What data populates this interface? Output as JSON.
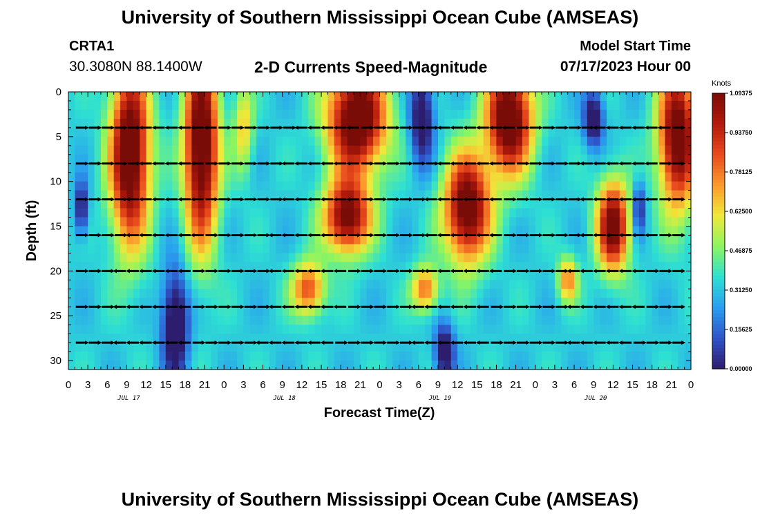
{
  "header": {
    "title": "University of Southern Mississippi Ocean Cube (AMSEAS)",
    "station": "CRTA1",
    "coords": "30.3080N  88.1400W",
    "subtitle": "2-D Currents Speed-Magnitude",
    "model_start_label": "Model Start Time",
    "model_start_value": "07/17/2023 Hour 00"
  },
  "footer": {
    "title": "University of Southern Mississippi Ocean Cube (AMSEAS)"
  },
  "chart_data": {
    "type": "heatmap",
    "title": "2-D Currents Speed-Magnitude",
    "xlabel": "Forecast Time(Z)",
    "ylabel": "Depth (ft)",
    "x_tick_labels": [
      "0",
      "3",
      "6",
      "9",
      "12",
      "15",
      "18",
      "21",
      "0",
      "3",
      "6",
      "9",
      "12",
      "15",
      "18",
      "21",
      "0",
      "3",
      "6",
      "9",
      "12",
      "15",
      "18",
      "21",
      "0",
      "3",
      "6",
      "9",
      "12",
      "15",
      "18",
      "21",
      "0"
    ],
    "date_labels": [
      {
        "label": "JUL 17",
        "hour": 9
      },
      {
        "label": "JUL 18",
        "hour": 33
      },
      {
        "label": "JUL 19",
        "hour": 57
      },
      {
        "label": "JUL 20",
        "hour": 81
      }
    ],
    "xlim": [
      0,
      96
    ],
    "ylim": [
      0,
      31
    ],
    "y_ticks": [
      0,
      5,
      10,
      15,
      20,
      25,
      30
    ],
    "arrow_depths": [
      4,
      8,
      12,
      16,
      20,
      24,
      28
    ],
    "arrow_hours_step": 2,
    "colorbar": {
      "unit": "Knots",
      "range": [
        0,
        1.09375
      ],
      "labels": [
        "1.09375",
        "0.93750",
        "0.78125",
        "0.62500",
        "0.46875",
        "0.31250",
        "0.15625",
        "0.00000"
      ],
      "colors": [
        "#2c1d6e",
        "#2f53c8",
        "#2a9ef0",
        "#2ee0d2",
        "#8cf560",
        "#f0e83a",
        "#fb9a2c",
        "#e8491c",
        "#b21a0c",
        "#7a0c08"
      ]
    },
    "speed_features": [
      {
        "t": 9.5,
        "d": 7,
        "ts": 3.0,
        "ds": 10,
        "a": 0.85
      },
      {
        "t": 20.5,
        "d": 6,
        "ts": 2.6,
        "ds": 11,
        "a": 0.85
      },
      {
        "t": 43,
        "d": 14,
        "ts": 3.5,
        "ds": 4,
        "a": 0.75
      },
      {
        "t": 37,
        "d": 22,
        "ts": 2.5,
        "ds": 3,
        "a": 0.5
      },
      {
        "t": 44.5,
        "d": 3,
        "ts": 4.5,
        "ds": 6,
        "a": 0.85
      },
      {
        "t": 61.5,
        "d": 13,
        "ts": 3.5,
        "ds": 6,
        "a": 0.8
      },
      {
        "t": 55,
        "d": 22,
        "ts": 2.0,
        "ds": 2.5,
        "a": 0.45
      },
      {
        "t": 68,
        "d": 3,
        "ts": 3.5,
        "ds": 6,
        "a": 0.85
      },
      {
        "t": 84,
        "d": 15,
        "ts": 2.5,
        "ds": 5,
        "a": 0.75
      },
      {
        "t": 77,
        "d": 21,
        "ts": 1.5,
        "ds": 2.5,
        "a": 0.4
      },
      {
        "t": 94,
        "d": 5,
        "ts": 3.0,
        "ds": 8,
        "a": 0.8
      },
      {
        "t": 27,
        "d": 4,
        "ts": 1.5,
        "ds": 5,
        "a": 0.3
      },
      {
        "t": 16.5,
        "d": 26,
        "ts": 2.0,
        "ds": 6,
        "a": -0.45
      },
      {
        "t": 2,
        "d": 13,
        "ts": 1.0,
        "ds": 3,
        "a": -0.35
      },
      {
        "t": 54.5,
        "d": 3,
        "ts": 1.8,
        "ds": 5,
        "a": -0.4
      },
      {
        "t": 58,
        "d": 29,
        "ts": 1.5,
        "ds": 3,
        "a": -0.4
      },
      {
        "t": 81,
        "d": 3,
        "ts": 1.5,
        "ds": 3,
        "a": -0.4
      },
      {
        "t": 88,
        "d": 13,
        "ts": 1.0,
        "ds": 3,
        "a": -0.3
      }
    ]
  }
}
